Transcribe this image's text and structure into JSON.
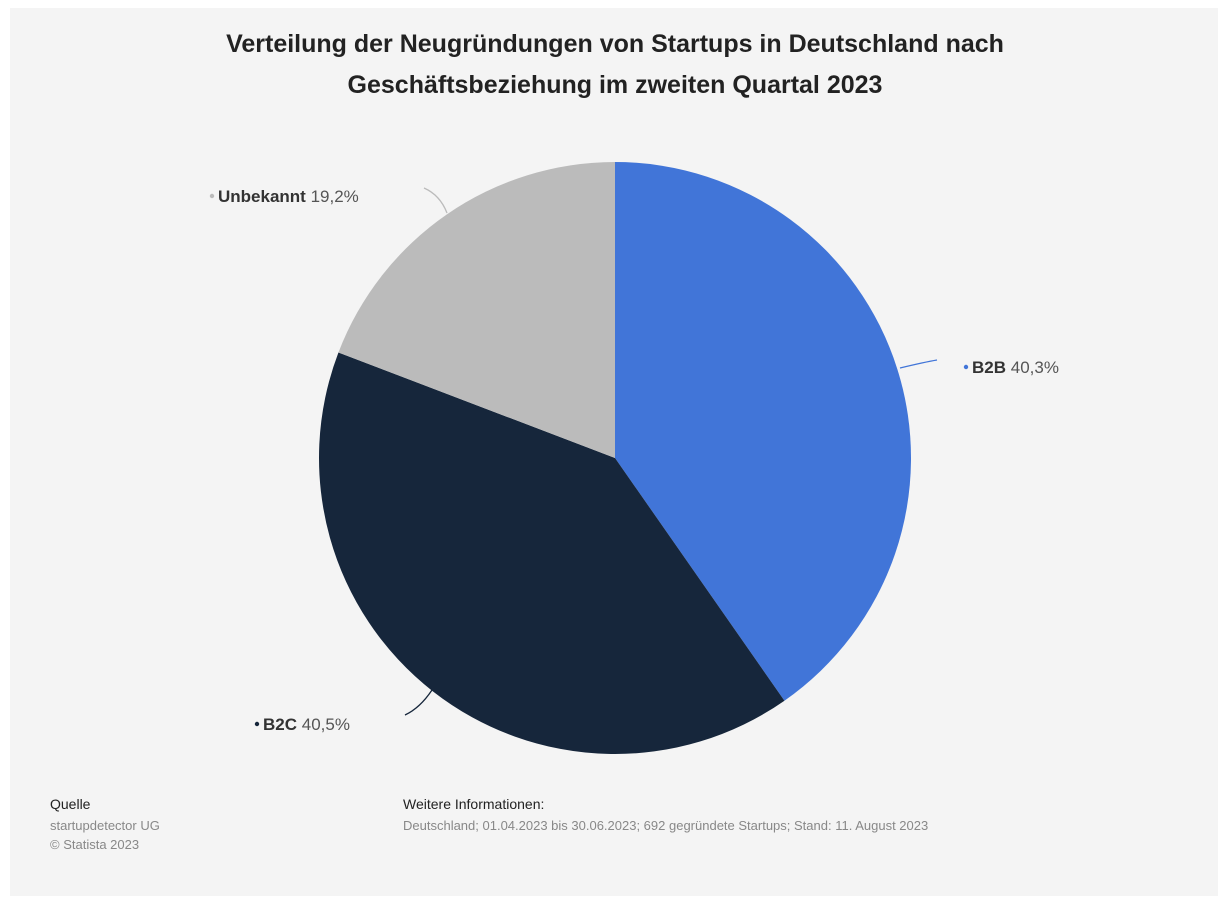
{
  "chart_data": {
    "type": "pie",
    "title": [
      "Verteilung der Neugründungen von Startups in Deutschland nach",
      "Geschäftsbeziehung im zweiten Quartal 2023"
    ],
    "unit": "%",
    "slices": [
      {
        "label": "B2B",
        "value": 40.3,
        "display": "40,3%",
        "color": "#4175d8"
      },
      {
        "label": "B2C",
        "value": 40.5,
        "display": "40,5%",
        "color": "#16263b"
      },
      {
        "label": "Unbekannt",
        "value": 19.2,
        "display": "19,2%",
        "color": "#bbbbbb"
      }
    ]
  },
  "footer": {
    "source_heading": "Quelle",
    "source_name": "startupdetector UG",
    "copyright": "© Statista 2023",
    "info_heading": "Weitere Informationen:",
    "info_text": "Deutschland; 01.04.2023 bis 30.06.2023; 692 gegründete Startups; Stand: 11. August 2023"
  }
}
